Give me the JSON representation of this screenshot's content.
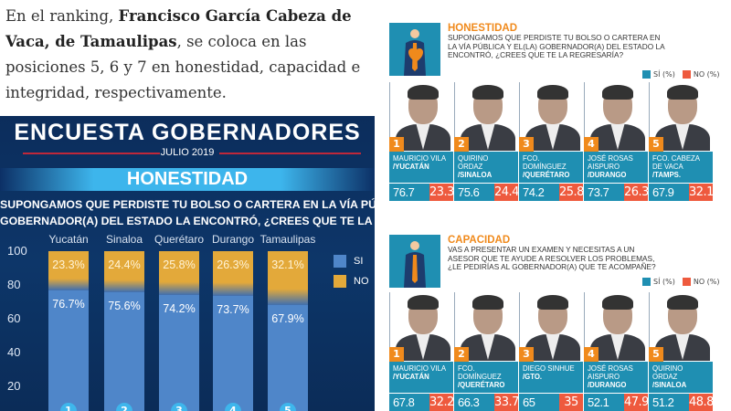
{
  "intro": {
    "pre": "En el ranking, ",
    "bold": "Francisco García Cabeza de Vaca, de Tamaulipas",
    "post": ", se coloca en las posiciones 5, 6 y 7 en honestidad, capacidad e integridad, respectivamente."
  },
  "chart_data": {
    "type": "bar",
    "stacked": true,
    "title": "ENCUESTA GOBERNADORES",
    "subtitle": "JULIO 2019",
    "section": "HONESTIDAD",
    "question": [
      "SUPONGAMOS QUE PERDISTE TU BOLSO O CARTERA EN LA VÍA PÚBLICA Y EL(LA)",
      "GOBERNADOR(A) DEL ESTADO LA ENCONTRÓ, ¿CREES QUE TE LA REGRESARÍA?"
    ],
    "categories": [
      "Yucatán",
      "Sinaloa",
      "Querétaro",
      "Durango",
      "Tamaulipas"
    ],
    "ranks": [
      "1",
      "2",
      "3",
      "4",
      "5"
    ],
    "series": [
      {
        "name": "SI",
        "color": "#4f86c9",
        "values": [
          76.7,
          75.6,
          74.2,
          73.7,
          67.9
        ],
        "labels": [
          "76.7%",
          "75.6%",
          "74.2%",
          "73.7%",
          "67.9%"
        ]
      },
      {
        "name": "NO",
        "color": "#e3a93a",
        "values": [
          23.3,
          24.4,
          25.8,
          26.3,
          32.1
        ],
        "labels": [
          "23.3%",
          "24.4%",
          "25.8%",
          "26.3%",
          "32.1%"
        ]
      }
    ],
    "yticks": [
      "100",
      "80",
      "60",
      "40",
      "20"
    ],
    "ylim": [
      0,
      100
    ],
    "legend": "right"
  },
  "right": {
    "legend_si": "SÍ (%)",
    "legend_no": "NO (%)",
    "colors": {
      "si": "#1f8fb2",
      "no": "#ee5a3e",
      "accent": "#f08a1c"
    },
    "sections": [
      {
        "title": "HONESTIDAD",
        "icon": "person-heart-icon",
        "question": "SUPONGAMOS QUE PERDISTE TU BOLSO O CARTERA EN LA VÍA PÚBLICA Y EL(LA) GOBERNADOR(A) DEL ESTADO LA ENCONTRÓ, ¿CREES QUE TE LA REGRESARÍA?",
        "people": [
          {
            "rank": "1",
            "name": "MAURICIO VILA",
            "state": "/YUCATÁN",
            "si": "76.7",
            "no": "23.3"
          },
          {
            "rank": "2",
            "name": "QUIRINO ORDAZ",
            "state": "/SINALOA",
            "si": "75.6",
            "no": "24.4"
          },
          {
            "rank": "3",
            "name": "FCO. DOMÍNGUEZ",
            "state": "/QUERÉTARO",
            "si": "74.2",
            "no": "25.8"
          },
          {
            "rank": "4",
            "name": "JOSÉ ROSAS AISPURO",
            "state": "/DURANGO",
            "si": "73.7",
            "no": "26.3"
          },
          {
            "rank": "5",
            "name": "FCO. CABEZA DE VACA",
            "state": "/TAMPS.",
            "si": "67.9",
            "no": "32.1"
          }
        ]
      },
      {
        "title": "CAPACIDAD",
        "icon": "person-running-icon",
        "question": "VAS A PRESENTAR UN EXAMEN Y NECESITAS A UN ASESOR QUE TE AYUDE A RESOLVER LOS PROBLEMAS, ¿LE PEDIRÍAS AL GOBERNADOR(A) QUE TE ACOMPAÑE?",
        "people": [
          {
            "rank": "1",
            "name": "MAURICIO VILA",
            "state": "/YUCATÁN",
            "si": "67.8",
            "no": "32.2"
          },
          {
            "rank": "2",
            "name": "FCO. DOMÍNGUEZ",
            "state": "/QUERÉTARO",
            "si": "66.3",
            "no": "33.7"
          },
          {
            "rank": "3",
            "name": "DIEGO SINHUE",
            "state": "/GTO.",
            "si": "65",
            "no": "35"
          },
          {
            "rank": "4",
            "name": "JOSÉ ROSAS AISPURO",
            "state": "/DURANGO",
            "si": "52.1",
            "no": "47.9"
          },
          {
            "rank": "5",
            "name": "QUIRINO ORDAZ",
            "state": "/SINALOA",
            "si": "51.2",
            "no": "48.8"
          }
        ]
      }
    ]
  }
}
